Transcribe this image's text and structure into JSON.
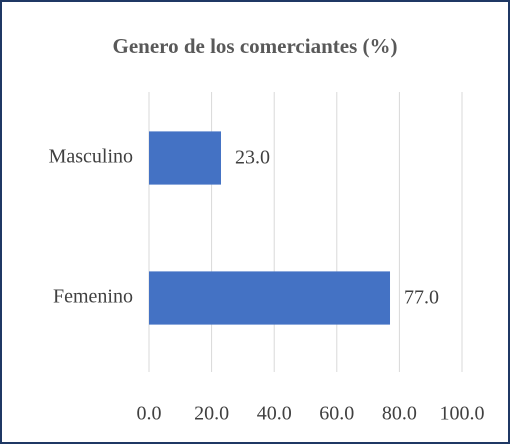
{
  "chart_data": {
    "type": "bar",
    "orientation": "horizontal",
    "title": "Genero de los comerciantes (%)",
    "categories": [
      "Masculino",
      "Femenino"
    ],
    "values": [
      23.0,
      77.0
    ],
    "value_labels": [
      "23.0",
      "77.0"
    ],
    "color": "#4472c4",
    "xlim": [
      0,
      100
    ],
    "xticks": [
      {
        "value": 0,
        "label": "0.0"
      },
      {
        "value": 20,
        "label": "20.0"
      },
      {
        "value": 40,
        "label": "40.0"
      },
      {
        "value": 60,
        "label": "60.0"
      },
      {
        "value": 80,
        "label": "80.0"
      },
      {
        "value": 100,
        "label": "100.0"
      }
    ],
    "grid": true
  }
}
